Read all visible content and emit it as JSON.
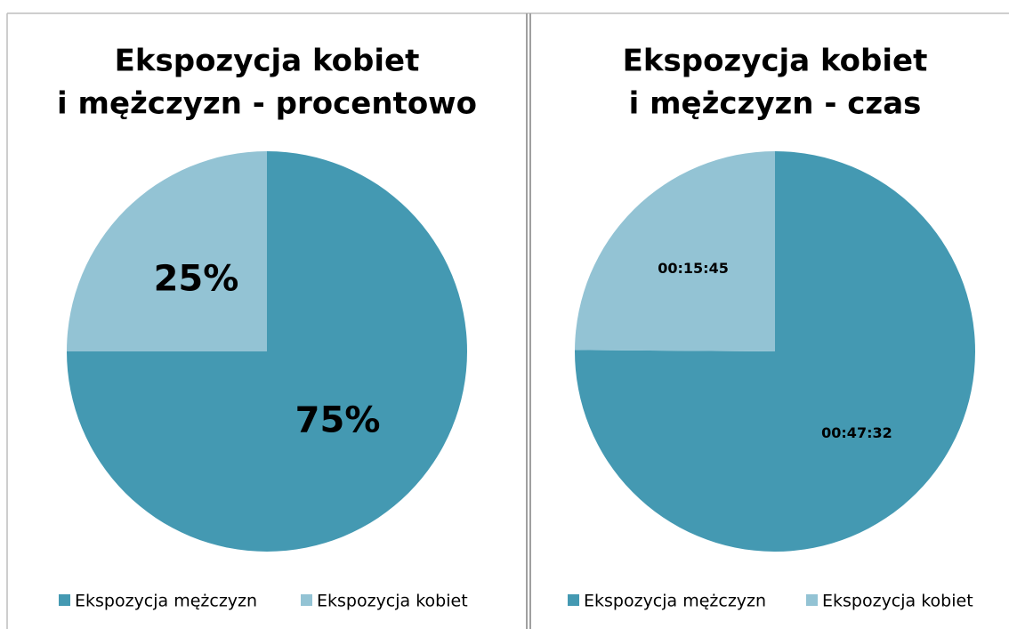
{
  "chart_data": [
    {
      "type": "pie",
      "title": [
        "Ekspozycja kobiet",
        "i mężczyzn  - procentowo"
      ],
      "categories": [
        "Ekspozycja mężczyzn",
        "Ekspozycja kobiet"
      ],
      "values": [
        75,
        25
      ],
      "value_labels": [
        "75%",
        "25%"
      ],
      "colors": [
        "#4499b2",
        "#93c3d4"
      ],
      "legend": "bottom"
    },
    {
      "type": "pie",
      "title": [
        "Ekspozycja kobiet",
        "i mężczyzn  - czas"
      ],
      "categories": [
        "Ekspozycja mężczyzn",
        "Ekspozycja kobiet"
      ],
      "values": [
        2852,
        945
      ],
      "value_labels": [
        "00:47:32",
        "00:15:45"
      ],
      "colors": [
        "#4499b2",
        "#93c3d4"
      ],
      "legend": "bottom"
    }
  ]
}
